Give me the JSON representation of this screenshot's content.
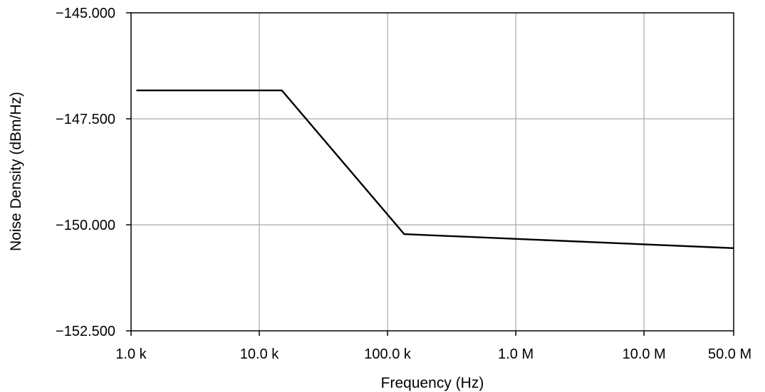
{
  "chart_data": {
    "type": "line",
    "title": "",
    "xlabel": "Frequency (Hz)",
    "ylabel": "Noise Density (dBm/Hz)",
    "x_scale": "log",
    "xlim": [
      1000,
      50000000
    ],
    "ylim": [
      -152.5,
      -145.0
    ],
    "grid": true,
    "x_ticks": [
      {
        "value": 1000,
        "label": "1.0 k"
      },
      {
        "value": 10000,
        "label": "10.0 k"
      },
      {
        "value": 100000,
        "label": "100.0 k"
      },
      {
        "value": 1000000,
        "label": "1.0 M"
      },
      {
        "value": 10000000,
        "label": "10.0 M"
      },
      {
        "value": 50000000,
        "label": "50.0 M"
      }
    ],
    "y_ticks": [
      {
        "value": -145.0,
        "label": "−145.000"
      },
      {
        "value": -147.5,
        "label": "−147.500"
      },
      {
        "value": -150.0,
        "label": "−150.000"
      },
      {
        "value": -152.5,
        "label": "−152.500"
      }
    ],
    "series": [
      {
        "color": "#000000",
        "points": [
          {
            "x": 1100,
            "y": -146.83
          },
          {
            "x": 15000,
            "y": -146.83
          },
          {
            "x": 135000,
            "y": -150.22
          },
          {
            "x": 50000000,
            "y": -150.55
          }
        ]
      }
    ]
  }
}
